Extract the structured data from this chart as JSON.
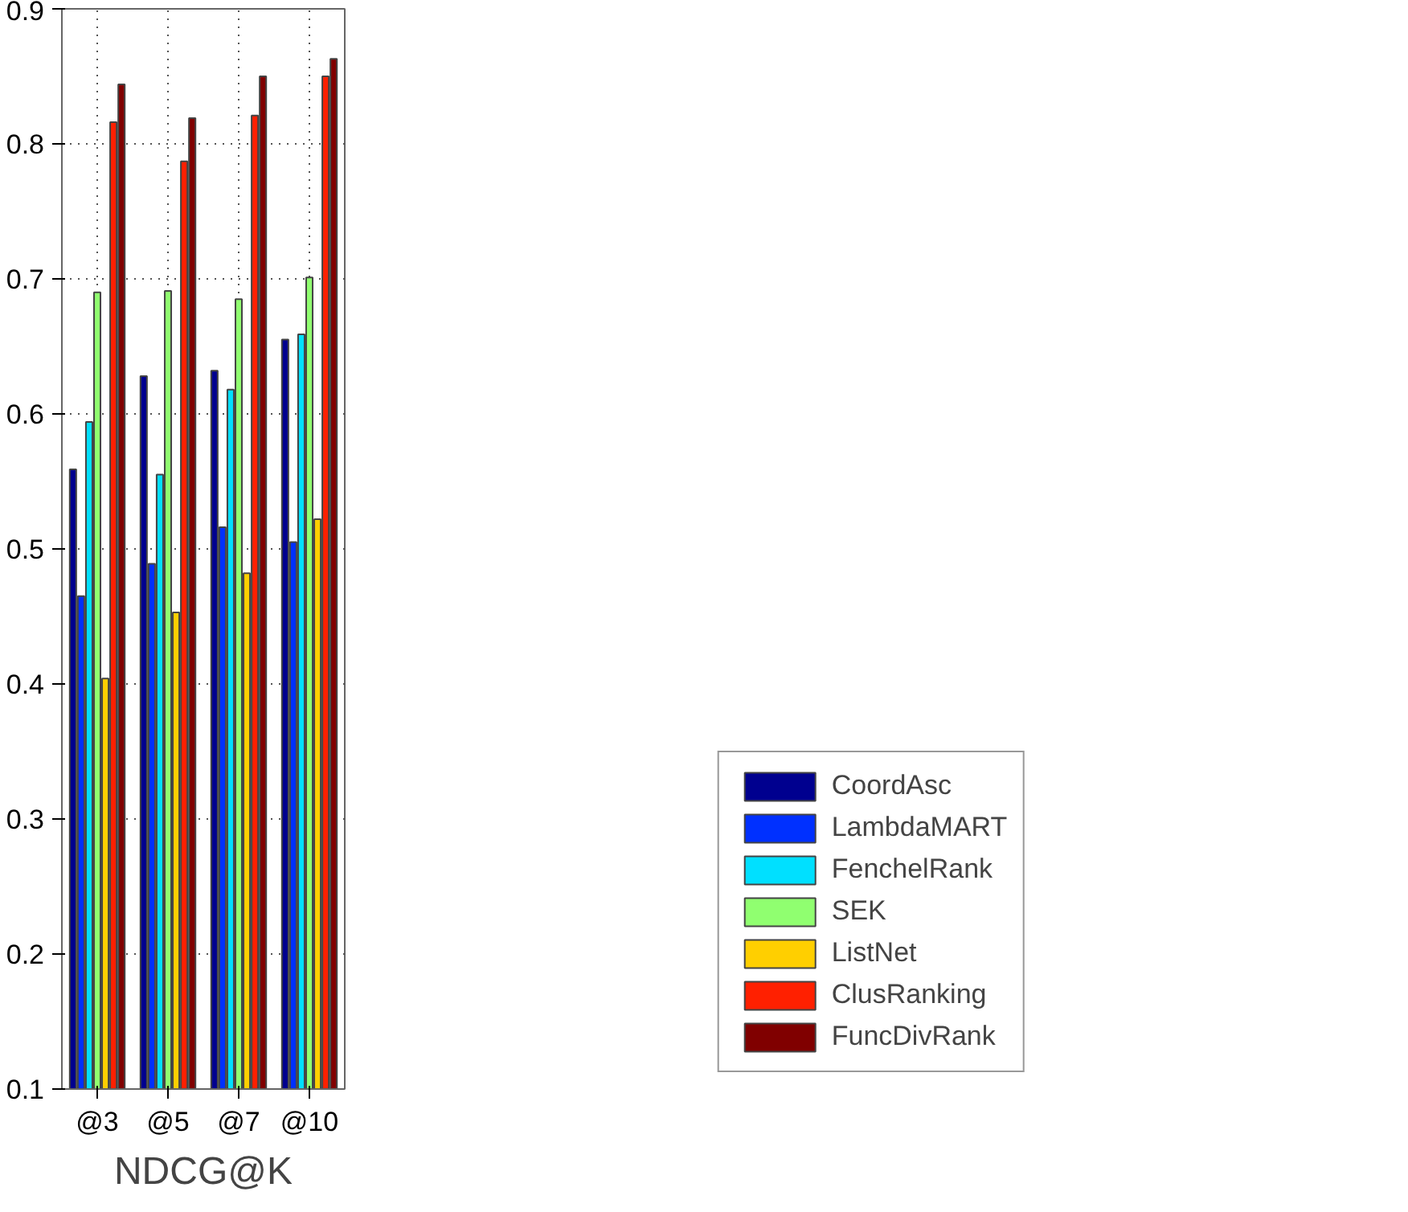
{
  "chart_data": {
    "type": "bar",
    "xlabel": "NDCG@K",
    "categories": [
      "@3",
      "@5",
      "@7",
      "@10"
    ],
    "series": [
      {
        "name": "CoordAsc",
        "color": "#00008f",
        "values": [
          0.559,
          0.628,
          0.632,
          0.655
        ]
      },
      {
        "name": "LambdaMART",
        "color": "#0030ff",
        "values": [
          0.465,
          0.489,
          0.516,
          0.505
        ]
      },
      {
        "name": "FenchelRank",
        "color": "#00e0ff",
        "values": [
          0.594,
          0.555,
          0.618,
          0.659
        ]
      },
      {
        "name": "SEK",
        "color": "#90ff70",
        "values": [
          0.69,
          0.691,
          0.685,
          0.701
        ]
      },
      {
        "name": "ListNet",
        "color": "#ffcf00",
        "values": [
          0.404,
          0.453,
          0.482,
          0.522
        ]
      },
      {
        "name": "ClusRanking",
        "color": "#ff2000",
        "values": [
          0.816,
          0.787,
          0.821,
          0.85
        ]
      },
      {
        "name": "FuncDivRank",
        "color": "#800000",
        "values": [
          0.844,
          0.819,
          0.85,
          0.863
        ]
      }
    ],
    "ylim": [
      0.1,
      0.9
    ],
    "yticks": [
      0.1,
      0.2,
      0.3,
      0.4,
      0.5,
      0.6,
      0.7,
      0.8,
      0.9
    ],
    "grid": true,
    "legend": "right"
  }
}
